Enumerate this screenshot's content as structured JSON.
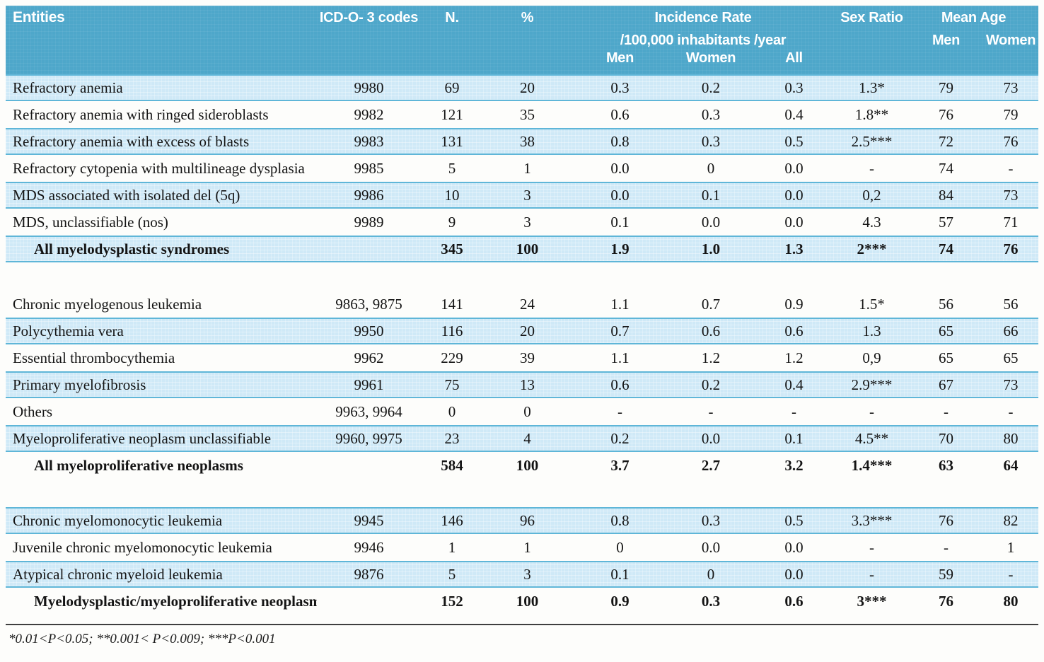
{
  "colors": {
    "header_bg": "#4ea7ca",
    "row_shade": "#cfe9f7",
    "row_shade_border": "#5fb6d8",
    "rule": "#3f3f3f"
  },
  "table": {
    "header": {
      "entities": "Entities",
      "icd": "ICD-O- 3 codes",
      "n": "N.",
      "pct": "%",
      "incidence_title": "Incidence Rate",
      "incidence_subtitle": "/100,000 inhabitants /year",
      "incidence_sub": [
        "Men",
        "Women",
        "All"
      ],
      "sex_ratio": "Sex Ratio",
      "mean_age": "Mean Age",
      "mean_age_sub": [
        "Men",
        "Women"
      ]
    },
    "sections": [
      {
        "rows": [
          {
            "cells": [
              "Refractory anemia",
              "9980",
              "69",
              "20",
              "0.3",
              "0.2",
              "0.3",
              "1.3*",
              "79",
              "73"
            ],
            "shaded": true,
            "total": false
          },
          {
            "cells": [
              "Refractory anemia with ringed sideroblasts",
              "9982",
              "121",
              "35",
              "0.6",
              "0.3",
              "0.4",
              "1.8**",
              "76",
              "79"
            ],
            "shaded": false,
            "total": false
          },
          {
            "cells": [
              "Refractory anemia with excess of blasts",
              "9983",
              "131",
              "38",
              "0.8",
              "0.3",
              "0.5",
              "2.5***",
              "72",
              "76"
            ],
            "shaded": true,
            "total": false
          },
          {
            "cells": [
              "Refractory cytopenia with multilineage dysplasia",
              "9985",
              "5",
              "1",
              "0.0",
              "0",
              "0.0",
              "-",
              "74",
              "-"
            ],
            "shaded": false,
            "total": false
          },
          {
            "cells": [
              "MDS associated with isolated del (5q)",
              "9986",
              "10",
              "3",
              "0.0",
              "0.1",
              "0.0",
              "0,2",
              "84",
              "73"
            ],
            "shaded": true,
            "total": false
          },
          {
            "cells": [
              "MDS, unclassifiable (nos)",
              "9989",
              "9",
              "3",
              "0.1",
              "0.0",
              "0.0",
              "4.3",
              "57",
              "71"
            ],
            "shaded": false,
            "total": false
          },
          {
            "cells": [
              "All myelodysplastic syndromes",
              "",
              "345",
              "100",
              "1.9",
              "1.0",
              "1.3",
              "2***",
              "74",
              "76"
            ],
            "shaded": true,
            "total": true
          }
        ]
      },
      {
        "rows": [
          {
            "cells": [
              "Chronic myelogenous leukemia",
              "9863, 9875",
              "141",
              "24",
              "1.1",
              "0.7",
              "0.9",
              "1.5*",
              "56",
              "56"
            ],
            "shaded": false,
            "total": false
          },
          {
            "cells": [
              "Polycythemia vera",
              "9950",
              "116",
              "20",
              "0.7",
              "0.6",
              "0.6",
              "1.3",
              "65",
              "66"
            ],
            "shaded": true,
            "total": false
          },
          {
            "cells": [
              "Essential thrombocythemia",
              "9962",
              "229",
              "39",
              "1.1",
              "1.2",
              "1.2",
              "0,9",
              "65",
              "65"
            ],
            "shaded": false,
            "total": false
          },
          {
            "cells": [
              "Primary myelofibrosis",
              "9961",
              "75",
              "13",
              "0.6",
              "0.2",
              "0.4",
              "2.9***",
              "67",
              "73"
            ],
            "shaded": true,
            "total": false
          },
          {
            "cells": [
              "Others",
              "9963, 9964",
              "0",
              "0",
              "-",
              "-",
              "-",
              "-",
              "-",
              "-"
            ],
            "shaded": false,
            "total": false
          },
          {
            "cells": [
              "Myeloproliferative neoplasm unclassifiable",
              "9960, 9975",
              "23",
              "4",
              "0.2",
              "0.0",
              "0.1",
              "4.5**",
              "70",
              "80"
            ],
            "shaded": true,
            "total": false
          },
          {
            "cells": [
              "All myeloproliferative neoplasms",
              "",
              "584",
              "100",
              "3.7",
              "2.7",
              "3.2",
              "1.4***",
              "63",
              "64"
            ],
            "shaded": false,
            "total": true
          }
        ]
      },
      {
        "rows": [
          {
            "cells": [
              "Chronic myelomonocytic leukemia",
              "9945",
              "146",
              "96",
              "0.8",
              "0.3",
              "0.5",
              "3.3***",
              "76",
              "82"
            ],
            "shaded": true,
            "total": false
          },
          {
            "cells": [
              "Juvenile chronic myelomonocytic leukemia",
              "9946",
              "1",
              "1",
              "0",
              "0.0",
              "0.0",
              "-",
              "-",
              "1"
            ],
            "shaded": false,
            "total": false
          },
          {
            "cells": [
              "Atypical chronic myeloid leukemia",
              "9876",
              "5",
              "3",
              "0.1",
              "0",
              "0.0",
              "-",
              "59",
              "-"
            ],
            "shaded": true,
            "total": false
          },
          {
            "cells": [
              "Myelodysplastic/myeloproliferative neoplasms",
              "",
              "152",
              "100",
              "0.9",
              "0.3",
              "0.6",
              "3***",
              "76",
              "80"
            ],
            "shaded": false,
            "total": true
          }
        ]
      }
    ],
    "footnote": "*0.01<P<0.05; **0.001< P<0.009; ***P<0.001"
  }
}
